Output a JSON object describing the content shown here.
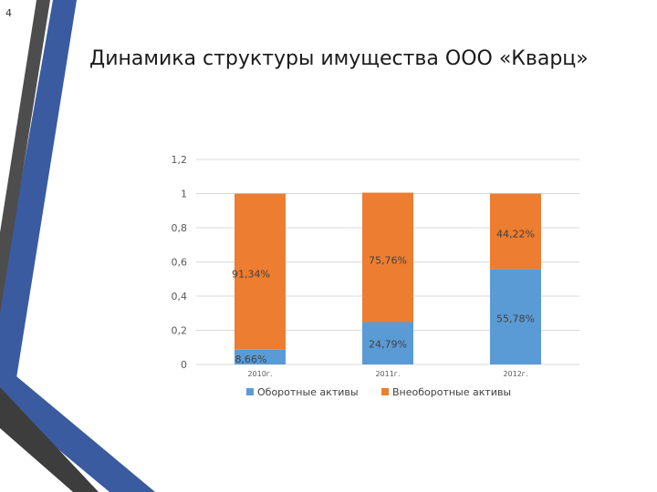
{
  "slide": {
    "number": "4",
    "title": "Динамика структуры имущества ООО «Кварц»"
  },
  "colors": {
    "accent_blue": "#3a5ba0",
    "accent_dark": "#4a4a4a",
    "series_current": "#5b9bd5",
    "series_noncurrent": "#ed7d31"
  },
  "chart_data": {
    "type": "bar",
    "stacked": true,
    "categories": [
      "2010г.",
      "2011г.",
      "2012г."
    ],
    "series": [
      {
        "name": "Оборотные активы",
        "values": [
          0.0866,
          0.2479,
          0.5578
        ],
        "labels": [
          "8,66%",
          "24,79%",
          "55,78%"
        ],
        "color": "#5b9bd5"
      },
      {
        "name": "Внеоборотные активы",
        "values": [
          0.9134,
          0.7576,
          0.4422
        ],
        "labels": [
          "91,34%",
          "75,76%",
          "44,22%"
        ],
        "color": "#ed7d31"
      }
    ],
    "y_ticks": [
      "0",
      "0,2",
      "0,4",
      "0,6",
      "0,8",
      "1",
      "1,2"
    ],
    "ylim": [
      0,
      1.2
    ],
    "grid": true,
    "legend_position": "bottom"
  }
}
